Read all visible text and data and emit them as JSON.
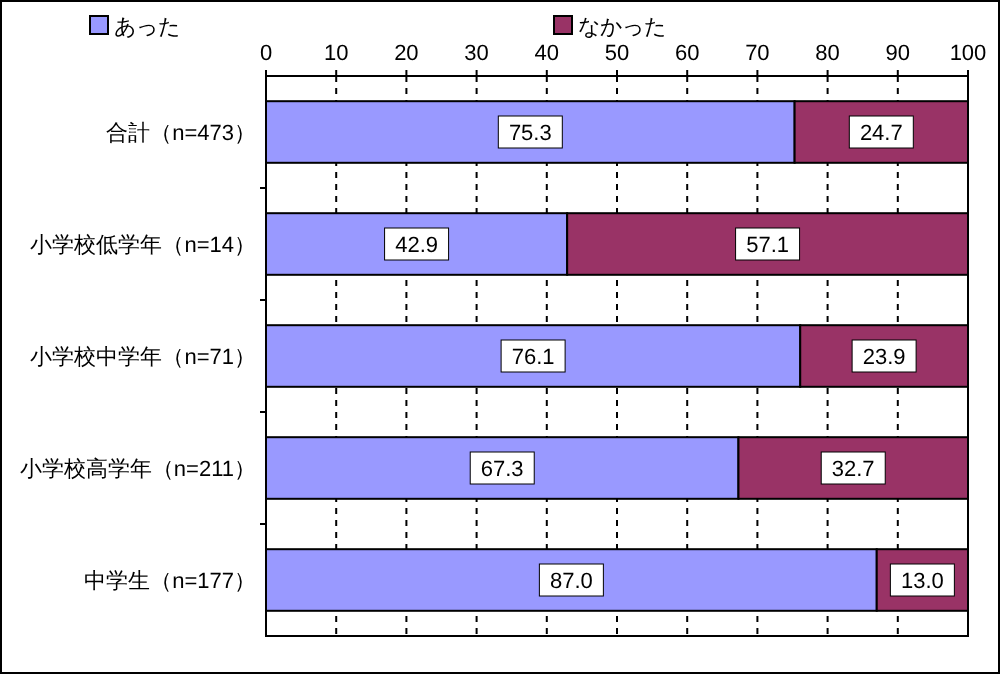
{
  "chart_data": {
    "type": "bar",
    "orientation": "horizontal",
    "stacked": true,
    "categories": [
      "合計（n=473）",
      "小学校低学年（n=14）",
      "小学校中学年（n=71）",
      "小学校高学年（n=211）",
      "中学生（n=177）"
    ],
    "series": [
      {
        "name": "あった",
        "color": "#9999ff",
        "values": [
          75.3,
          42.9,
          76.1,
          67.3,
          87.0
        ],
        "value_labels": [
          "75.3",
          "42.9",
          "76.1",
          "67.3",
          "87.0"
        ]
      },
      {
        "name": "なかった",
        "color": "#993366",
        "values": [
          24.7,
          57.1,
          23.9,
          32.7,
          13.0
        ],
        "value_labels": [
          "24.7",
          "57.1",
          "23.9",
          "32.7",
          "13.0"
        ]
      }
    ],
    "xlim": [
      0,
      100
    ],
    "xticks": [
      0,
      10,
      20,
      30,
      40,
      50,
      60,
      70,
      80,
      90,
      100
    ],
    "grid": "x",
    "legend": "top"
  }
}
